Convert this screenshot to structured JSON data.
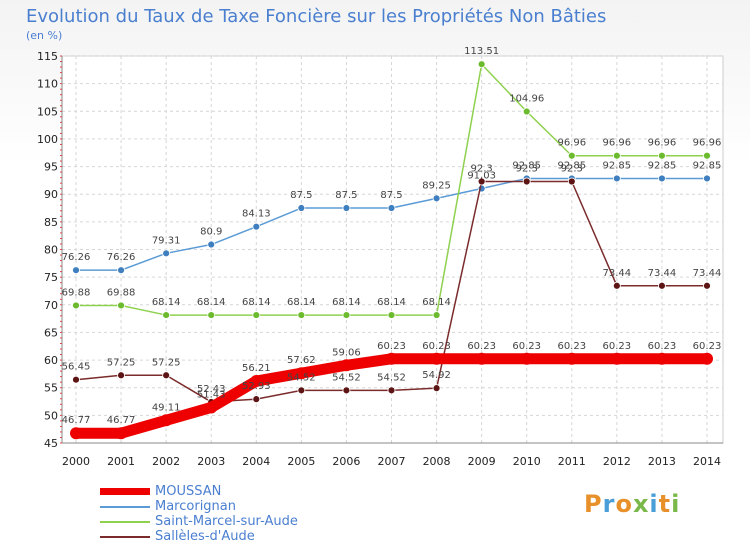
{
  "title": "Evolution du Taux de Taxe Foncière sur les Propriétés Non Bâties",
  "subtitle": "(en %)",
  "logo": {
    "text": "Proxiti",
    "colors": [
      "#e8912b",
      "#4a9fd8",
      "#e8912b",
      "#7ab84a",
      "#4a9fd8",
      "#e8912b",
      "#7ab84a"
    ]
  },
  "chart_data": {
    "type": "line",
    "title": "Evolution du Taux de Taxe Foncière sur les Propriétés Non Bâties",
    "ylabel": "(en %)",
    "xlabel": "",
    "ylim": [
      45,
      115
    ],
    "yticks": [
      45,
      50,
      55,
      60,
      65,
      70,
      75,
      80,
      85,
      90,
      95,
      100,
      105,
      110,
      115
    ],
    "x": [
      "2000",
      "2001",
      "2002",
      "2003",
      "2004",
      "2005",
      "2006",
      "2007",
      "2008",
      "2009",
      "2010",
      "2011",
      "2012",
      "2013",
      "2014"
    ],
    "grid": true,
    "legend_position": "bottom-left",
    "series": [
      {
        "name": "MOUSSAN",
        "color": "#ee0000",
        "thick": true,
        "values": [
          46.77,
          46.77,
          49.11,
          51.43,
          56.21,
          57.62,
          59.06,
          60.23,
          60.23,
          60.23,
          60.23,
          60.23,
          60.23,
          60.23,
          60.23
        ],
        "labels": [
          "46.77",
          "46.77",
          "49.11",
          "51.43",
          "56.21",
          "57.62",
          "59.06",
          "60.23",
          "60.23",
          "60.23",
          "60.23",
          "60.23",
          "60.23",
          "60.23",
          "60.23"
        ]
      },
      {
        "name": "Marcorignan",
        "color": "#5b9bd5",
        "marker": "#3f7fc0",
        "values": [
          76.26,
          76.26,
          79.31,
          80.9,
          84.13,
          87.5,
          87.5,
          87.5,
          89.25,
          91.03,
          92.85,
          92.85,
          92.85,
          92.85,
          92.85
        ],
        "labels": [
          "76.26",
          "76.26",
          "79.31",
          "80.9",
          "84.13",
          "87.5",
          "87.5",
          "87.5",
          "89.25",
          "91.03",
          "92.85",
          "92.85",
          "92.85",
          "92.85",
          "92.85"
        ]
      },
      {
        "name": "Saint-Marcel-sur-Aude",
        "color": "#8fd14f",
        "marker": "#6cbb2e",
        "values": [
          69.88,
          69.88,
          68.14,
          68.14,
          68.14,
          68.14,
          68.14,
          68.14,
          68.14,
          113.51,
          104.96,
          96.96,
          96.96,
          96.96,
          96.96
        ],
        "labels": [
          "69.88",
          "69.88",
          "68.14",
          "68.14",
          "68.14",
          "68.14",
          "68.14",
          "68.14",
          "68.14",
          "113.51",
          "104.96",
          "96.96",
          "96.96",
          "96.96",
          "96.96"
        ]
      },
      {
        "name": "Sallèles-d'Aude",
        "color": "#7b2b2b",
        "marker": "#5c1414",
        "values": [
          56.45,
          57.25,
          57.25,
          52.43,
          52.93,
          54.52,
          54.52,
          54.52,
          54.92,
          92.3,
          92.3,
          92.3,
          73.44,
          73.44,
          73.44
        ],
        "labels": [
          "56.45",
          "57.25",
          "57.25",
          "52.43",
          "52.93",
          "54.52",
          "54.52",
          "54.52",
          "54.92",
          "92.3",
          "92.3",
          "92.3",
          "73.44",
          "73.44",
          "73.44"
        ]
      }
    ]
  }
}
